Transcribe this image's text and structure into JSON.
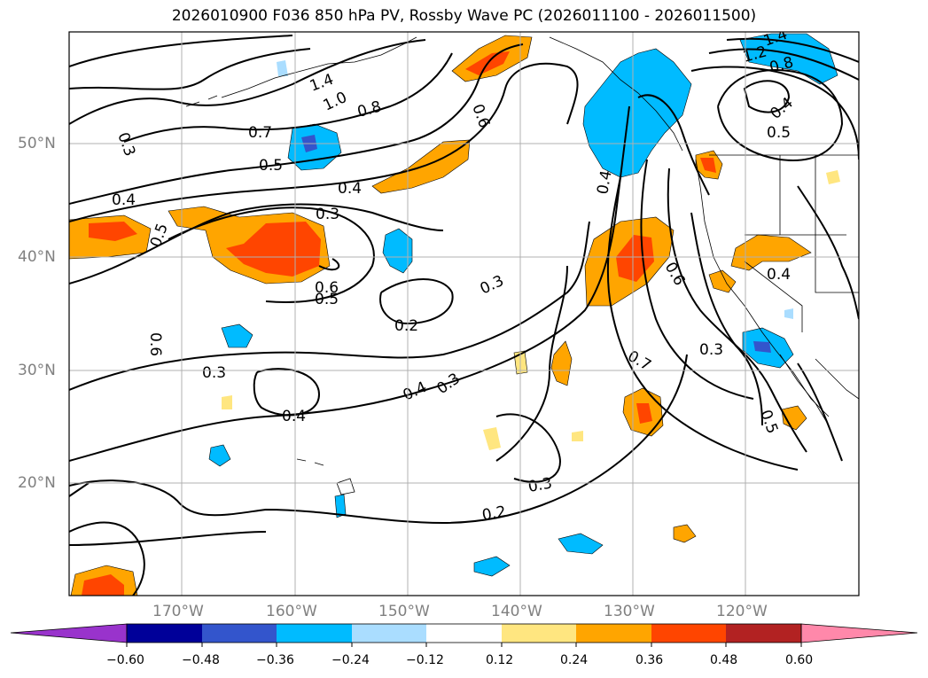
{
  "title": "2026010900 F036 850 hPa PV, Rossby Wave PC (2026011100 - 2026011500)",
  "map": {
    "lat_labels": [
      "50°N",
      "40°N",
      "30°N",
      "20°N"
    ],
    "lon_labels": [
      "170°W",
      "160°W",
      "150°W",
      "140°W",
      "130°W",
      "120°W"
    ],
    "contour_labels": [
      "1.4",
      "1.0",
      "0.8",
      "0.7",
      "0.5",
      "0.4",
      "0.3",
      "0.5",
      "0.6",
      "0.5",
      "0.3",
      "0.4",
      "0.2",
      "0.3",
      "0.4",
      "0.3",
      "0.4",
      "0.3",
      "0.2",
      "0.3",
      "0.6",
      "0.4",
      "0.6",
      "0.7",
      "0.3",
      "0.4",
      "0.5",
      "0.4",
      "1.4",
      "1.2",
      "0.8",
      "0.5",
      "0.6"
    ]
  },
  "colorbar": {
    "ticks": [
      "−0.60",
      "−0.48",
      "−0.36",
      "−0.24",
      "−0.12",
      "0.12",
      "0.24",
      "0.36",
      "0.48",
      "0.60"
    ],
    "colors": [
      "#9933cc",
      "#000099",
      "#3355cc",
      "#00bbff",
      "#aaddff",
      "#ffffff",
      "#ffe680",
      "#ffa500",
      "#ff4500",
      "#b22222",
      "#ff88aa"
    ]
  }
}
